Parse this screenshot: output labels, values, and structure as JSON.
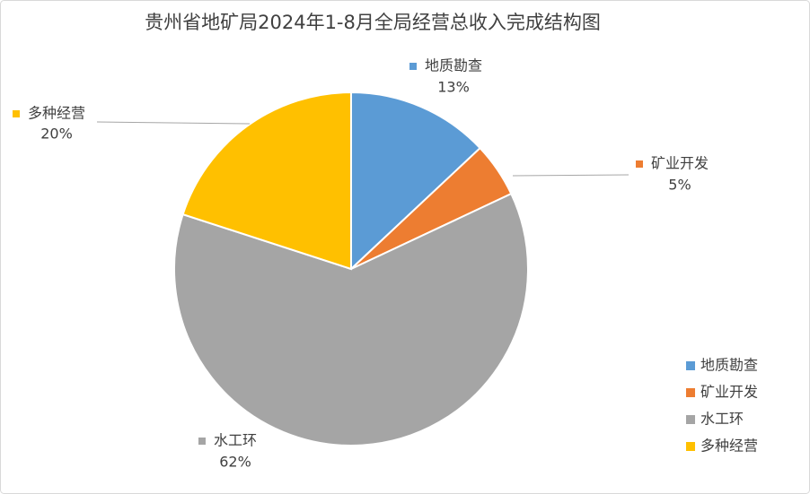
{
  "chart_data": {
    "type": "pie",
    "title": "贵州省地矿局2024年1-8月全局经营总收入完成结构图",
    "categories": [
      "地质勘查",
      "矿业开发",
      "水工环",
      "多种经营"
    ],
    "values": [
      13,
      5,
      62,
      20
    ],
    "value_labels": [
      "13%",
      "5%",
      "62%",
      "20%"
    ],
    "colors": [
      "#5b9bd5",
      "#ed7d31",
      "#a5a5a5",
      "#ffc000"
    ],
    "legend": "right"
  }
}
